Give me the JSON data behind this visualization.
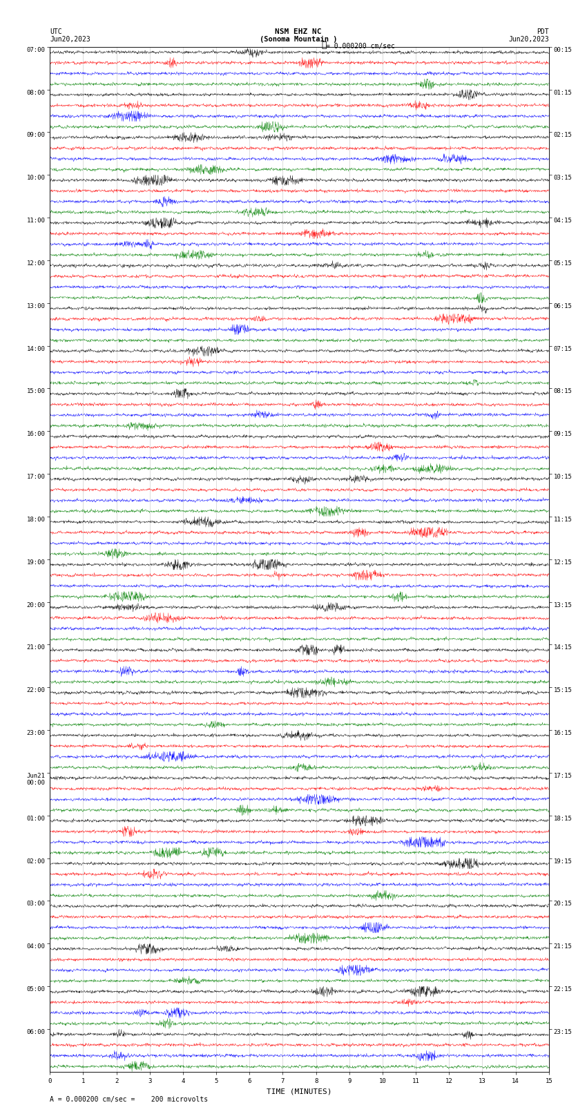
{
  "title_line1": "NSM EHZ NC",
  "title_line2": "(Sonoma Mountain )",
  "scale_label": "= 0.000200 cm/sec",
  "left_date": "Jun20,2023",
  "right_date": "Jun20,2023",
  "left_label": "UTC",
  "right_label": "PDT",
  "footer_label": "A = 0.000200 cm/sec =    200 microvolts",
  "xlabel": "TIME (MINUTES)",
  "utc_hour_labels": [
    "07:00",
    "08:00",
    "09:00",
    "10:00",
    "11:00",
    "12:00",
    "13:00",
    "14:00",
    "15:00",
    "16:00",
    "17:00",
    "18:00",
    "19:00",
    "20:00",
    "21:00",
    "22:00",
    "23:00",
    "Jun21\n00:00",
    "01:00",
    "02:00",
    "03:00",
    "04:00",
    "05:00",
    "06:00"
  ],
  "pdt_hour_labels": [
    "00:15",
    "01:15",
    "02:15",
    "03:15",
    "04:15",
    "05:15",
    "06:15",
    "07:15",
    "08:15",
    "09:15",
    "10:15",
    "11:15",
    "12:15",
    "13:15",
    "14:15",
    "15:15",
    "16:15",
    "17:15",
    "18:15",
    "19:15",
    "20:15",
    "21:15",
    "22:15",
    "23:15"
  ],
  "num_hours": 24,
  "traces_per_hour": 4,
  "colors": [
    "#000000",
    "#ff0000",
    "#0000ff",
    "#008000"
  ],
  "bg_color": "#ffffff",
  "xmin": 0,
  "xmax": 15,
  "grid_color": "#999999",
  "text_color": "#000000",
  "fontsize_title": 8,
  "fontsize_labels": 7,
  "fontsize_ticks": 6.5,
  "amplitude": 0.38,
  "noise_base": 0.06
}
